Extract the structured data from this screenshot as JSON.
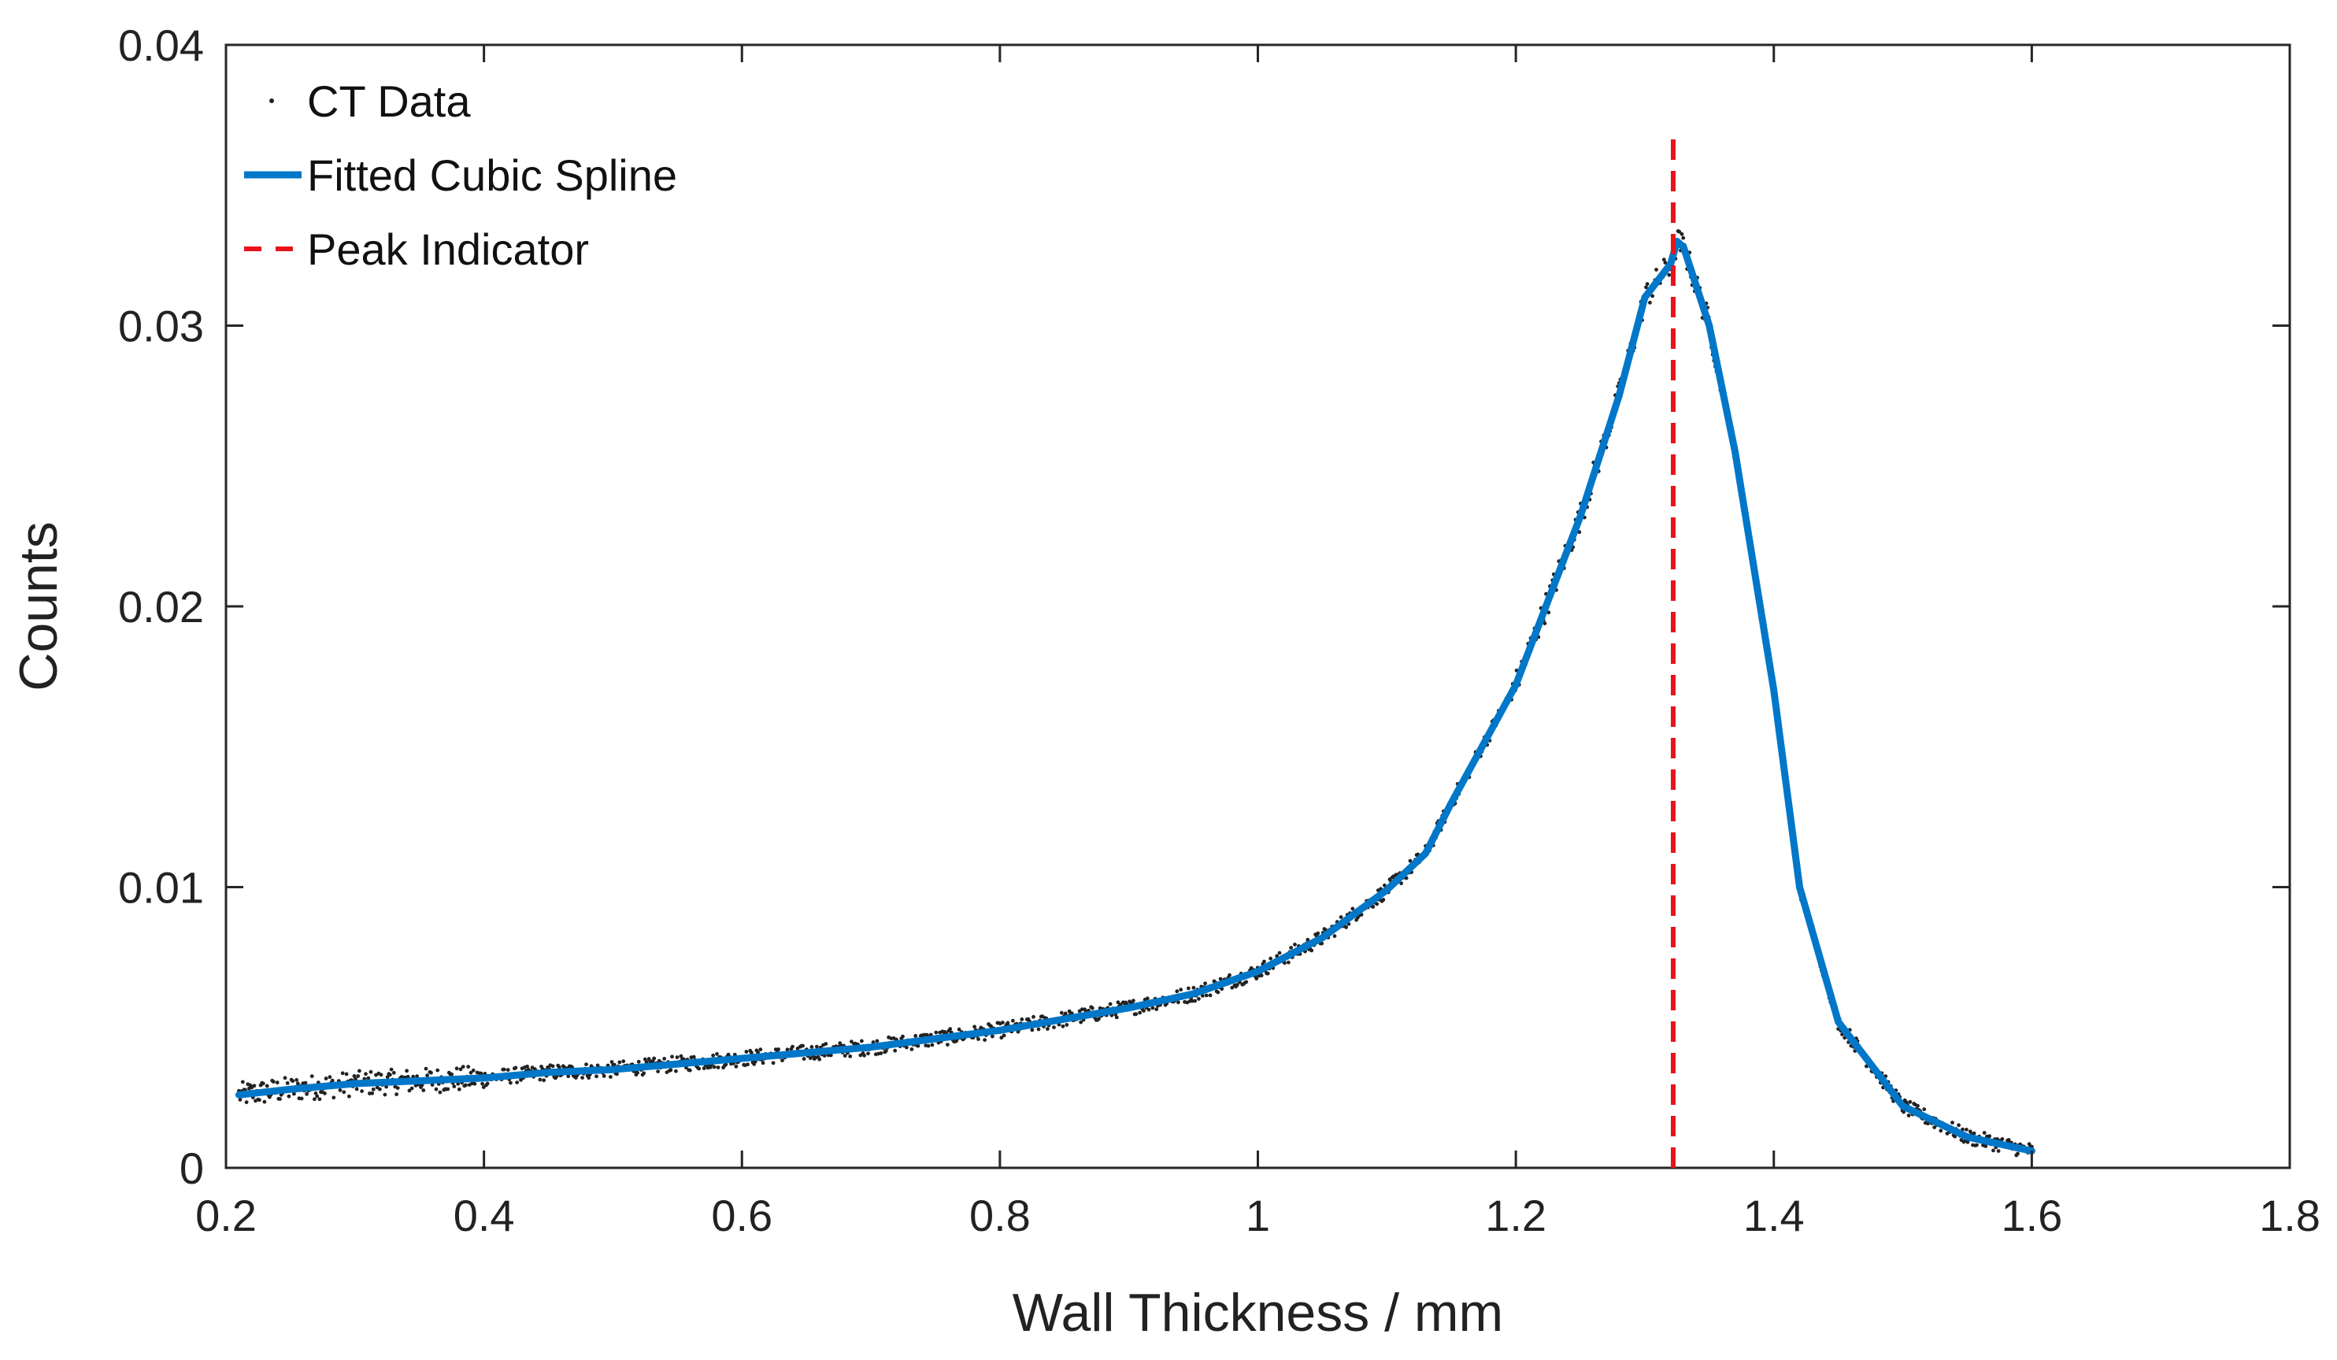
{
  "chart_data": {
    "type": "line",
    "title": "",
    "xlabel": "Wall Thickness / mm",
    "ylabel": "Counts",
    "xlim": [
      0.2,
      1.8
    ],
    "ylim": [
      0,
      0.04
    ],
    "x_ticks": [
      0.2,
      0.4,
      0.6,
      0.8,
      1.0,
      1.2,
      1.4,
      1.6,
      1.8
    ],
    "x_tick_labels": [
      "0.2",
      "0.4",
      "0.6",
      "0.8",
      "1",
      "1.2",
      "1.4",
      "1.6",
      "1.8"
    ],
    "y_ticks": [
      0,
      0.01,
      0.02,
      0.03,
      0.04
    ],
    "y_tick_labels": [
      "0",
      "0.01",
      "0.02",
      "0.03",
      "0.04"
    ],
    "grid": false,
    "legend_position": "top-left",
    "series": [
      {
        "name": "CT Data",
        "style": "scatter-dots",
        "color": "#222222",
        "x_range": [
          0.21,
          1.6
        ],
        "noise_note": "dense noisy samples scattered around the fitted spline"
      },
      {
        "name": "Fitted Cubic Spline",
        "style": "line",
        "color": "#0077C8",
        "x": [
          0.21,
          0.25,
          0.3,
          0.35,
          0.4,
          0.45,
          0.5,
          0.55,
          0.6,
          0.65,
          0.7,
          0.75,
          0.8,
          0.85,
          0.9,
          0.95,
          1.0,
          1.05,
          1.1,
          1.13,
          1.15,
          1.2,
          1.25,
          1.28,
          1.3,
          1.32,
          1.325,
          1.33,
          1.35,
          1.37,
          1.4,
          1.42,
          1.45,
          1.5,
          1.55,
          1.6
        ],
        "values": [
          0.0026,
          0.0028,
          0.003,
          0.0031,
          0.0032,
          0.0034,
          0.0035,
          0.0037,
          0.0039,
          0.0041,
          0.0043,
          0.0046,
          0.0049,
          0.0053,
          0.0057,
          0.0062,
          0.007,
          0.0082,
          0.0099,
          0.0112,
          0.013,
          0.0172,
          0.0232,
          0.0275,
          0.031,
          0.0322,
          0.033,
          0.0328,
          0.03,
          0.0255,
          0.017,
          0.01,
          0.0052,
          0.0022,
          0.0011,
          0.0006
        ]
      },
      {
        "name": "Peak Indicator",
        "style": "dashed-vertical",
        "color": "#E8141B",
        "x": 1.322,
        "y_range": [
          0,
          0.037
        ]
      }
    ]
  }
}
